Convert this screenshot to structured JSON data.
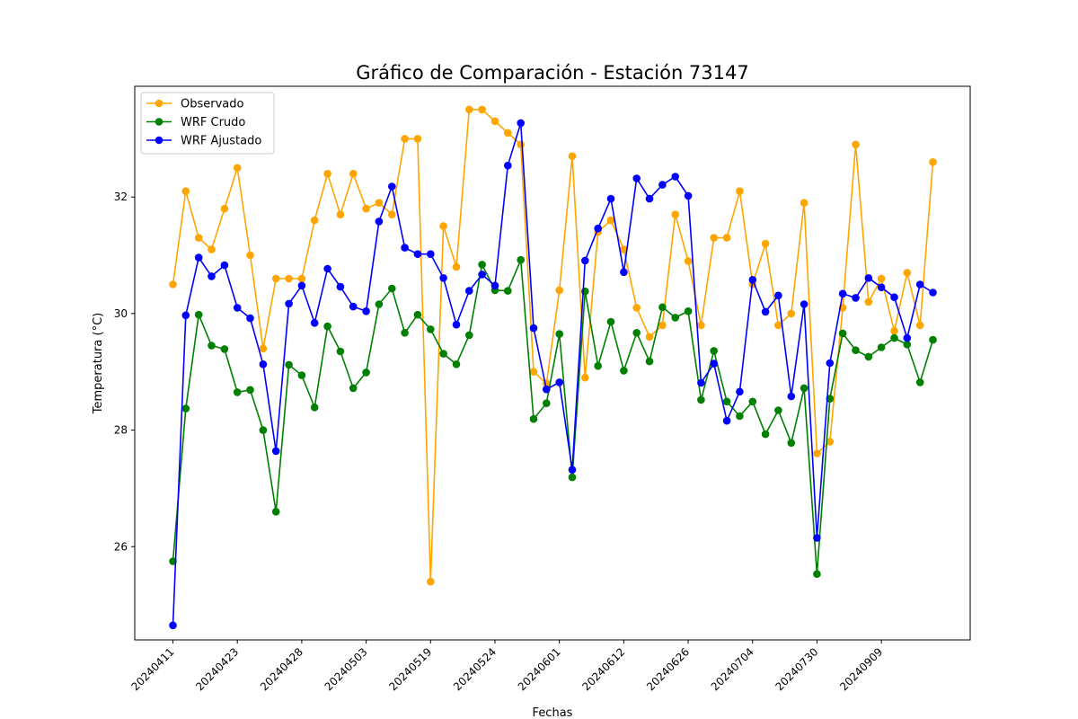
{
  "chart_data": {
    "type": "line",
    "title": "Gráfico de Comparación - Estación 73147",
    "xlabel": "Fechas",
    "ylabel": "Temperatura (°C)",
    "ylim": [
      24.4,
      33.9
    ],
    "yticks": [
      26,
      28,
      30,
      32
    ],
    "xtick_labels": [
      "20240411",
      "20240423",
      "20240428",
      "20240503",
      "20240519",
      "20240524",
      "20240601",
      "20240612",
      "20240626",
      "20240704",
      "20240730",
      "20240909"
    ],
    "legend_position": "upper-left",
    "grid": false,
    "series": [
      {
        "name": "Observado",
        "color": "#FFA500",
        "values": [
          30.5,
          32.1,
          31.3,
          31.1,
          31.8,
          32.5,
          31.0,
          29.4,
          30.6,
          30.6,
          30.6,
          31.6,
          32.4,
          31.7,
          32.4,
          31.8,
          31.9,
          31.7,
          33.0,
          33.0,
          25.4,
          31.5,
          30.8,
          33.5,
          33.5,
          33.3,
          33.1,
          32.9,
          29.0,
          28.8,
          30.4,
          32.7,
          28.9,
          31.4,
          31.6,
          31.1,
          30.1,
          29.6,
          29.8,
          31.7,
          30.9,
          29.8,
          31.3,
          31.3,
          32.1,
          30.5,
          31.2,
          29.8,
          30.0,
          31.9,
          27.6,
          27.8,
          30.1,
          32.9,
          30.2,
          30.6,
          29.7,
          30.7,
          29.8,
          32.6
        ]
      },
      {
        "name": "WRF Crudo",
        "color": "#008000",
        "values": [
          25.75,
          28.37,
          29.98,
          29.45,
          29.39,
          28.65,
          28.69,
          28.0,
          26.6,
          29.12,
          28.94,
          28.39,
          29.78,
          29.35,
          28.72,
          28.99,
          30.16,
          30.43,
          29.67,
          29.98,
          29.73,
          29.31,
          29.13,
          29.63,
          30.84,
          30.4,
          30.39,
          30.92,
          28.19,
          28.46,
          29.65,
          27.19,
          30.38,
          29.1,
          29.86,
          29.02,
          29.67,
          29.18,
          30.11,
          29.93,
          30.04,
          28.52,
          29.36,
          28.49,
          28.24,
          28.49,
          27.93,
          28.34,
          27.78,
          28.72,
          25.53,
          28.54,
          29.66,
          29.37,
          29.26,
          29.42,
          29.58,
          29.47,
          28.82,
          29.55
        ]
      },
      {
        "name": "WRF Ajustado",
        "color": "#0000FF",
        "values": [
          24.65,
          29.97,
          30.96,
          30.64,
          30.83,
          30.1,
          29.92,
          29.13,
          27.64,
          30.17,
          30.48,
          29.84,
          30.77,
          30.46,
          30.12,
          30.04,
          31.58,
          32.18,
          31.13,
          31.02,
          31.02,
          30.61,
          29.81,
          30.39,
          30.67,
          30.48,
          32.54,
          33.27,
          29.75,
          28.7,
          28.82,
          27.32,
          30.91,
          31.46,
          31.97,
          30.71,
          32.32,
          31.97,
          32.21,
          32.35,
          32.02,
          28.81,
          29.14,
          28.16,
          28.66,
          30.58,
          30.03,
          30.31,
          28.58,
          30.16,
          26.15,
          29.15,
          30.34,
          30.27,
          30.61,
          30.45,
          30.28,
          29.58,
          30.5,
          30.36
        ]
      }
    ]
  }
}
